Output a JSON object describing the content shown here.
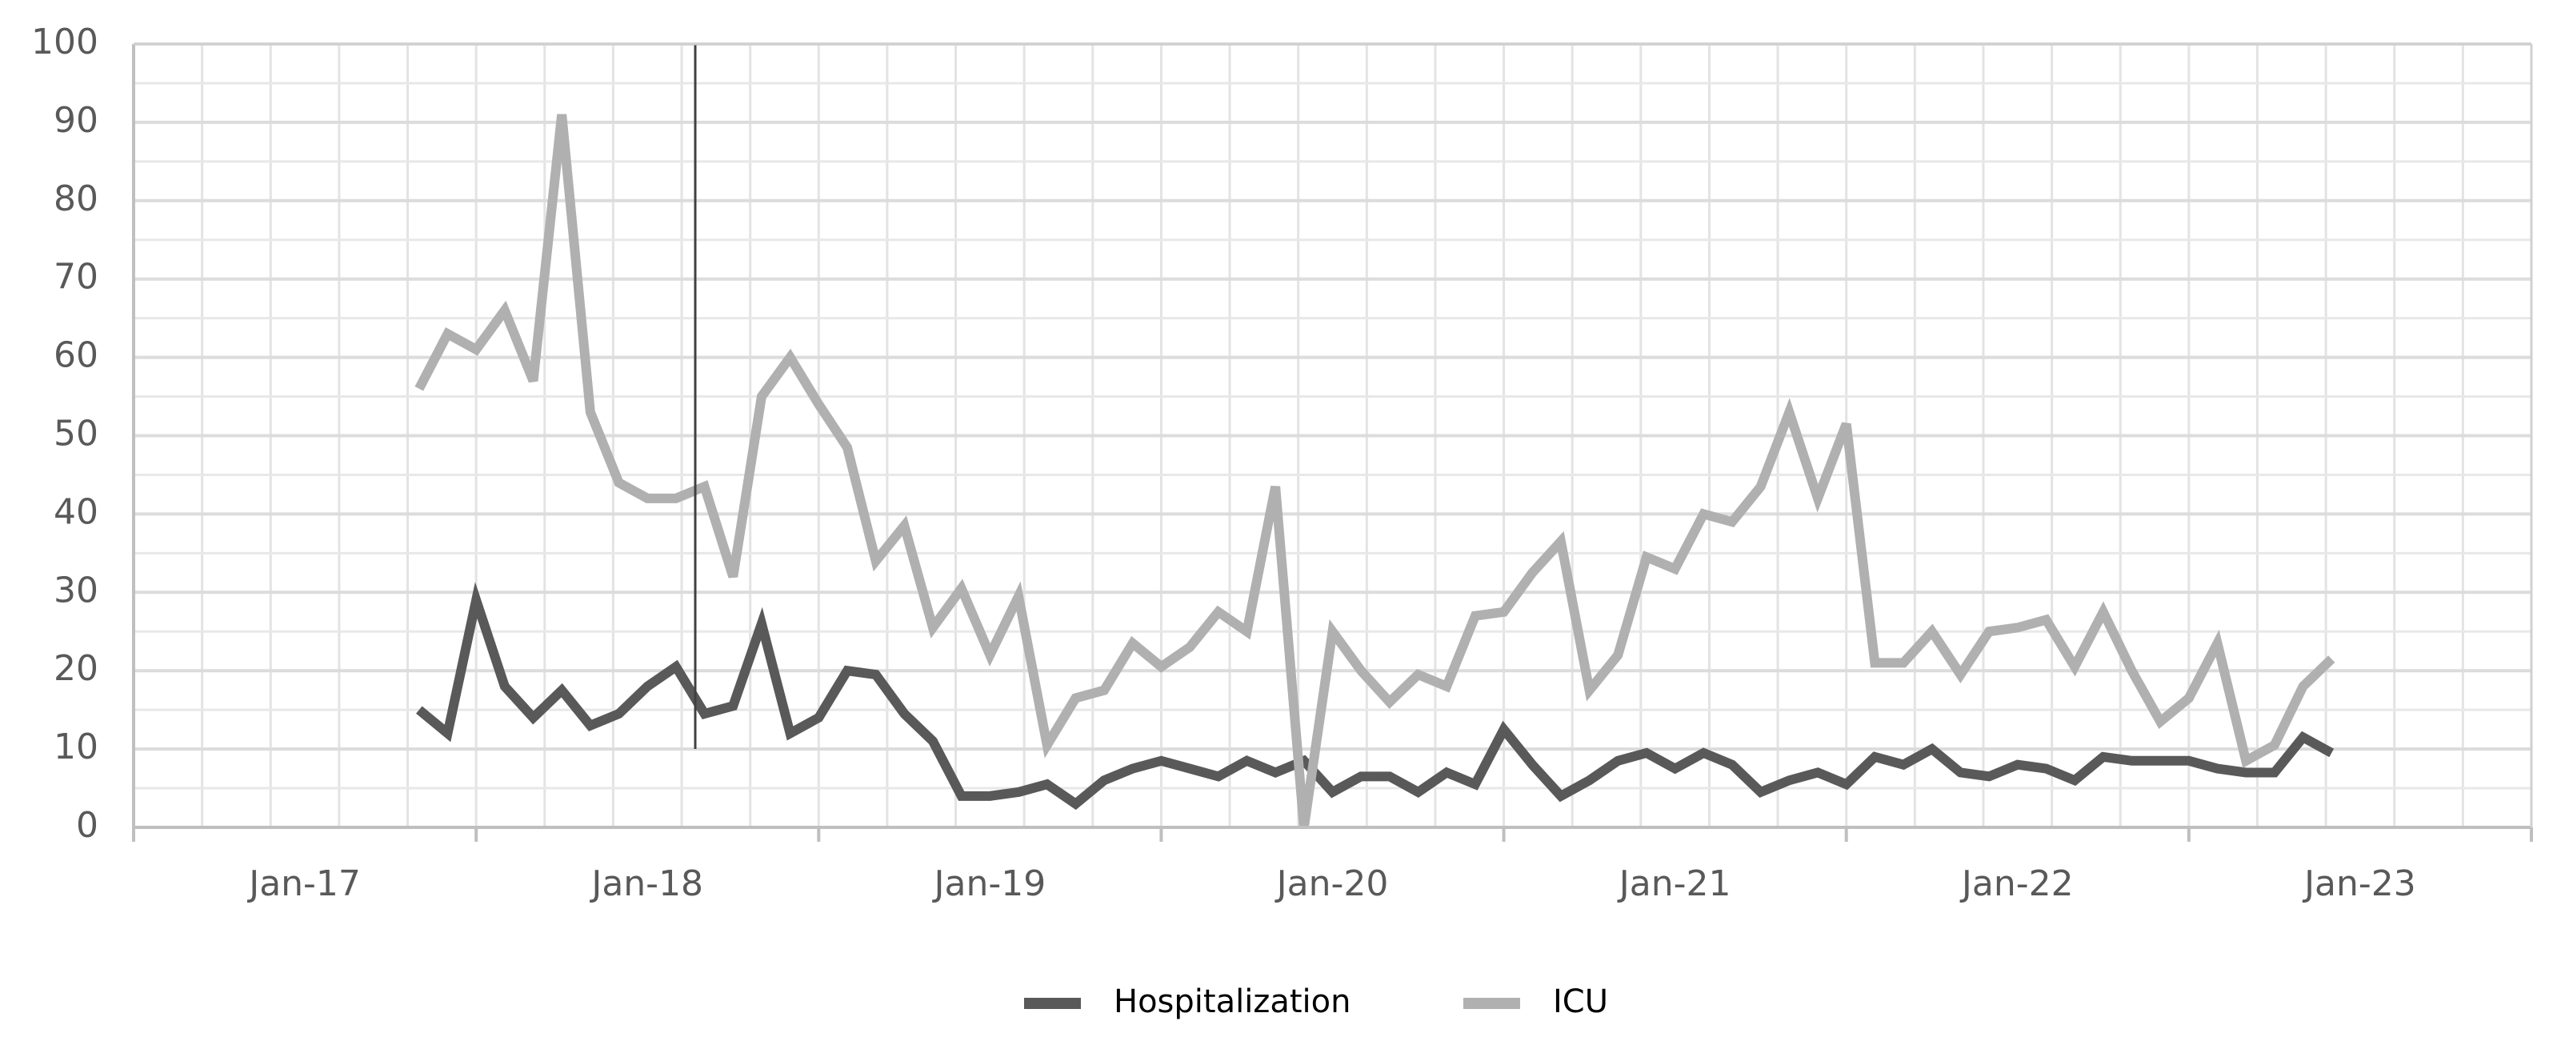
{
  "chart_data": {
    "type": "line",
    "x": [
      "2017-05",
      "2017-06",
      "2017-07",
      "2017-08",
      "2017-09",
      "2017-10",
      "2017-11",
      "2017-12",
      "2018-01",
      "2018-02",
      "2018-03",
      "2018-04",
      "2018-05",
      "2018-06",
      "2018-07",
      "2018-08",
      "2018-09",
      "2018-10",
      "2018-11",
      "2018-12",
      "2019-01",
      "2019-02",
      "2019-03",
      "2019-04",
      "2019-05",
      "2019-06",
      "2019-07",
      "2019-08",
      "2019-09",
      "2019-10",
      "2019-11",
      "2019-12",
      "2020-01",
      "2020-02",
      "2020-03",
      "2020-04",
      "2020-05",
      "2020-06",
      "2020-07",
      "2020-08",
      "2020-09",
      "2020-10",
      "2020-11",
      "2020-12",
      "2021-01",
      "2021-02",
      "2021-03",
      "2021-04",
      "2021-05",
      "2021-06",
      "2021-07",
      "2021-08",
      "2021-09",
      "2021-10",
      "2021-11",
      "2021-12",
      "2022-01",
      "2022-02",
      "2022-03",
      "2022-04",
      "2022-05",
      "2022-06",
      "2022-07",
      "2022-08",
      "2022-09",
      "2022-10",
      "2022-11",
      "2022-12"
    ],
    "series": [
      {
        "name": "Hospitalization",
        "color": "#595959",
        "values": [
          15,
          12,
          29,
          18,
          14,
          17.5,
          13,
          14.5,
          18,
          20.5,
          14.5,
          15.5,
          26,
          12,
          14,
          20,
          19.5,
          14.5,
          11,
          4,
          4,
          4.5,
          5.5,
          3,
          6,
          7.5,
          8.5,
          7.5,
          6.5,
          8.5,
          7,
          8.5,
          4.5,
          6.5,
          6.5,
          4.5,
          7,
          5.5,
          12.5,
          8,
          4,
          6,
          8.5,
          9.5,
          7.5,
          9.5,
          8,
          4.5,
          6,
          7,
          5.5,
          9,
          8,
          10,
          7,
          6.5,
          8,
          7.5,
          6,
          9,
          8.5,
          8.5,
          8.5,
          7.5,
          7,
          7,
          11.5,
          9.5
        ]
      },
      {
        "name": "ICU",
        "color": "#b0b0b0",
        "values": [
          56,
          63,
          61,
          66,
          57,
          91,
          53,
          44,
          42,
          42,
          43.5,
          32,
          55,
          60,
          54,
          48.5,
          34,
          38.5,
          25.5,
          30.5,
          22,
          29.5,
          10.5,
          16.5,
          17.5,
          23.5,
          20.5,
          23,
          27.5,
          25,
          43.5,
          0,
          25,
          20,
          16,
          19.5,
          18,
          27,
          27.5,
          32.5,
          36.5,
          17.5,
          22,
          34.5,
          33,
          40,
          39,
          43.5,
          53,
          42,
          51.5,
          21,
          21,
          25,
          19.5,
          25,
          25.5,
          26.5,
          20.5,
          27.5,
          20,
          13.5,
          16.5,
          23.5,
          8.5,
          10.5,
          18,
          21.5
        ]
      }
    ],
    "xlim": [
      "2016-07",
      "2023-07"
    ],
    "xticks": [
      {
        "value": "2017-01",
        "label": "Jan-17"
      },
      {
        "value": "2018-01",
        "label": "Jan-18"
      },
      {
        "value": "2019-01",
        "label": "Jan-19"
      },
      {
        "value": "2020-01",
        "label": "Jan-20"
      },
      {
        "value": "2021-01",
        "label": "Jan-21"
      },
      {
        "value": "2022-01",
        "label": "Jan-22"
      },
      {
        "value": "2023-01",
        "label": "Jan-23"
      }
    ],
    "ylim": [
      0,
      100
    ],
    "yticks": [
      0,
      10,
      20,
      30,
      40,
      50,
      60,
      70,
      80,
      90,
      100
    ],
    "grid": true
  }
}
